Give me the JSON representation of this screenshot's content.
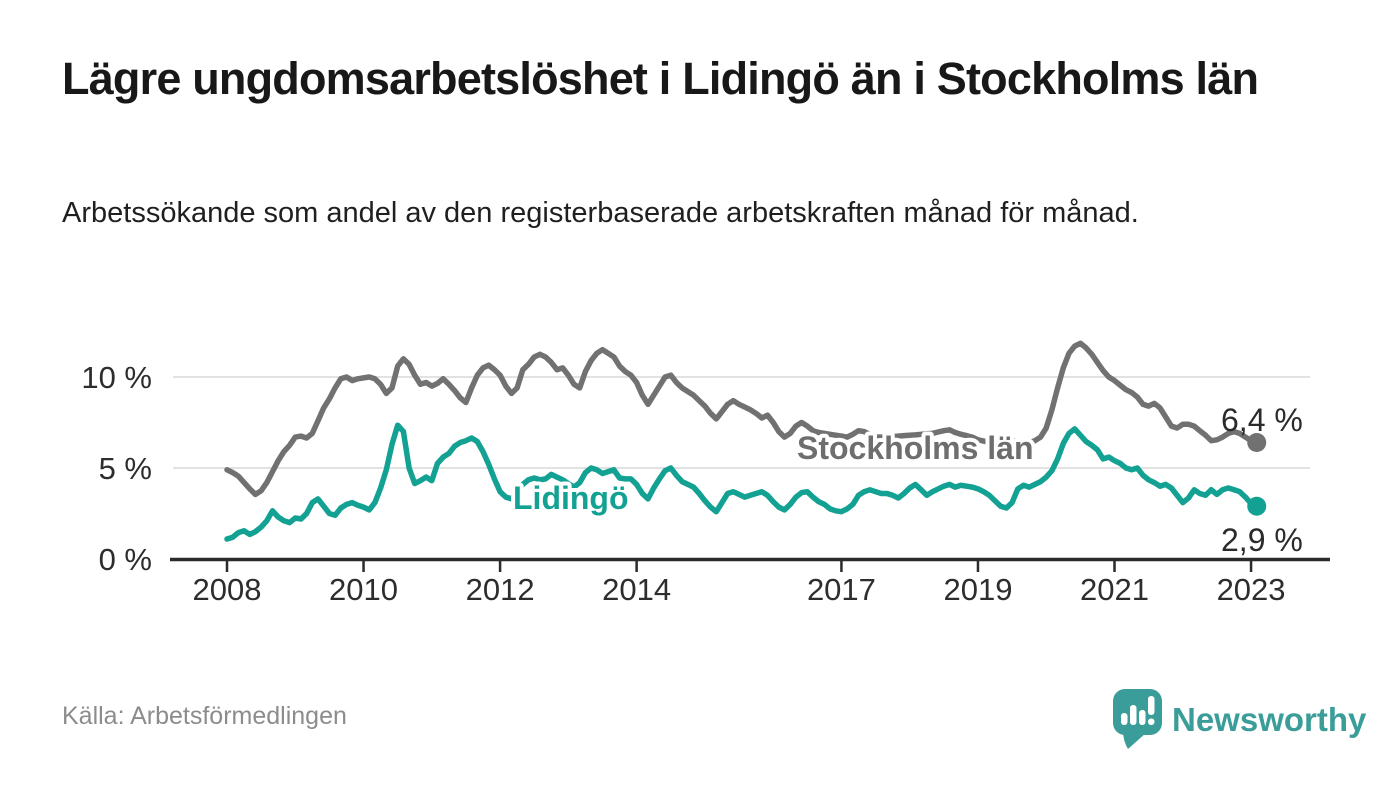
{
  "header": {
    "title": "Lägre ungdomsarbetslöshet i Lidingö än i Stockholms län",
    "subtitle": "Arbetssökande som andel av den registerbaserade arbetskraften månad för månad."
  },
  "footer": {
    "source": "Källa: Arbetsförmedlingen",
    "brand": "Newsworthy"
  },
  "colors": {
    "stockholm_line": "#717171",
    "lidingo_line": "#12a192",
    "grid": "#d9d9d9",
    "axis": "#2b2b2b",
    "tick_text": "#2d2d2d",
    "end_label_text": "#2b2b2b",
    "source_text": "#8c8c8c",
    "brand_teal": "#3b9d99"
  },
  "chart_data": {
    "type": "line",
    "unit": "%",
    "ylim": [
      0,
      12
    ],
    "grid": "horizontal-only",
    "legend_position": "inline-on-lines",
    "y_ticks": [
      {
        "label": "0 %",
        "value": 0
      },
      {
        "label": "5 %",
        "value": 5
      },
      {
        "label": "10 %",
        "value": 10
      }
    ],
    "x_ticks": [
      {
        "label": "2008",
        "year": 2008
      },
      {
        "label": "2010",
        "year": 2010
      },
      {
        "label": "2012",
        "year": 2012
      },
      {
        "label": "2014",
        "year": 2014
      },
      {
        "label": "2017",
        "year": 2017
      },
      {
        "label": "2019",
        "year": 2019
      },
      {
        "label": "2021",
        "year": 2021
      },
      {
        "label": "2023",
        "year": 2023
      }
    ],
    "x_start_year": 2008,
    "interval_months": 1,
    "series": [
      {
        "name": "Stockholms län",
        "color": "#717171",
        "end_label": "6,4 %",
        "end_value": 6.4,
        "values": [
          4.9,
          4.75,
          4.55,
          4.2,
          3.85,
          3.55,
          3.75,
          4.2,
          4.8,
          5.4,
          5.9,
          6.25,
          6.7,
          6.75,
          6.65,
          6.9,
          7.6,
          8.3,
          8.8,
          9.4,
          9.9,
          10.0,
          9.8,
          9.9,
          9.95,
          10.0,
          9.9,
          9.6,
          9.1,
          9.4,
          10.6,
          11.0,
          10.7,
          10.1,
          9.6,
          9.7,
          9.5,
          9.65,
          9.9,
          9.6,
          9.25,
          8.85,
          8.6,
          9.4,
          10.1,
          10.5,
          10.65,
          10.4,
          10.1,
          9.5,
          9.1,
          9.4,
          10.4,
          10.7,
          11.1,
          11.25,
          11.1,
          10.8,
          10.4,
          10.5,
          10.1,
          9.6,
          9.4,
          10.3,
          10.9,
          11.3,
          11.5,
          11.3,
          11.1,
          10.6,
          10.3,
          10.1,
          9.7,
          9.0,
          8.5,
          9.0,
          9.5,
          10.0,
          10.1,
          9.7,
          9.4,
          9.2,
          9.0,
          8.7,
          8.4,
          8.0,
          7.7,
          8.1,
          8.5,
          8.7,
          8.5,
          8.35,
          8.2,
          8.0,
          7.75,
          7.9,
          7.5,
          7.0,
          6.7,
          6.9,
          7.3,
          7.5,
          7.3,
          7.05,
          6.95,
          6.9,
          6.85,
          6.8,
          6.75,
          6.7,
          6.85,
          7.05,
          7.0,
          6.85,
          6.7,
          6.7,
          6.7,
          6.72,
          6.75,
          6.78,
          6.8,
          6.82,
          6.85,
          6.88,
          6.9,
          6.98,
          7.05,
          7.1,
          6.95,
          6.85,
          6.78,
          6.7,
          6.55,
          6.48,
          6.4,
          6.5,
          6.6,
          6.55,
          6.5,
          6.5,
          6.3,
          6.4,
          6.5,
          6.7,
          7.2,
          8.2,
          9.4,
          10.5,
          11.3,
          11.7,
          11.85,
          11.6,
          11.25,
          10.8,
          10.35,
          10.0,
          9.8,
          9.55,
          9.3,
          9.15,
          8.9,
          8.5,
          8.4,
          8.55,
          8.3,
          7.8,
          7.3,
          7.2,
          7.4,
          7.4,
          7.3,
          7.05,
          6.8,
          6.5,
          6.55,
          6.7,
          6.9,
          7.0,
          6.9,
          6.7,
          6.5,
          6.4
        ]
      },
      {
        "name": "Lidingö",
        "color": "#12a192",
        "end_label": "2,9 %",
        "end_value": 2.9,
        "values": [
          1.1,
          1.2,
          1.45,
          1.55,
          1.35,
          1.5,
          1.75,
          2.1,
          2.65,
          2.3,
          2.1,
          2.0,
          2.25,
          2.2,
          2.5,
          3.1,
          3.3,
          2.9,
          2.5,
          2.4,
          2.8,
          3.0,
          3.1,
          2.95,
          2.85,
          2.7,
          3.1,
          3.9,
          4.9,
          6.3,
          7.35,
          7.0,
          5.0,
          4.15,
          4.3,
          4.5,
          4.3,
          5.25,
          5.6,
          5.8,
          6.2,
          6.4,
          6.5,
          6.65,
          6.45,
          5.9,
          5.2,
          4.4,
          3.7,
          3.4,
          3.3,
          3.7,
          4.1,
          4.35,
          4.45,
          4.35,
          4.4,
          4.65,
          4.5,
          4.35,
          4.15,
          3.95,
          4.2,
          4.75,
          5.0,
          4.9,
          4.7,
          4.8,
          4.9,
          4.45,
          4.4,
          4.4,
          4.1,
          3.6,
          3.3,
          3.9,
          4.4,
          4.85,
          5.0,
          4.6,
          4.25,
          4.1,
          3.95,
          3.6,
          3.2,
          2.85,
          2.6,
          3.1,
          3.6,
          3.7,
          3.55,
          3.4,
          3.5,
          3.6,
          3.7,
          3.5,
          3.15,
          2.85,
          2.7,
          3.0,
          3.4,
          3.65,
          3.7,
          3.4,
          3.15,
          3.0,
          2.75,
          2.65,
          2.6,
          2.75,
          3.0,
          3.5,
          3.7,
          3.8,
          3.7,
          3.6,
          3.6,
          3.5,
          3.35,
          3.6,
          3.9,
          4.1,
          3.8,
          3.5,
          3.7,
          3.85,
          4.0,
          4.1,
          3.95,
          4.05,
          4.0,
          3.95,
          3.85,
          3.7,
          3.5,
          3.2,
          2.9,
          2.8,
          3.1,
          3.85,
          4.05,
          3.95,
          4.1,
          4.25,
          4.5,
          4.85,
          5.5,
          6.35,
          6.9,
          7.15,
          6.8,
          6.45,
          6.25,
          6.0,
          5.5,
          5.6,
          5.4,
          5.25,
          5.0,
          4.9,
          5.0,
          4.6,
          4.35,
          4.2,
          4.0,
          4.1,
          3.9,
          3.5,
          3.1,
          3.35,
          3.8,
          3.6,
          3.5,
          3.8,
          3.55,
          3.8,
          3.9,
          3.8,
          3.7,
          3.4,
          3.05,
          2.9
        ]
      }
    ]
  }
}
